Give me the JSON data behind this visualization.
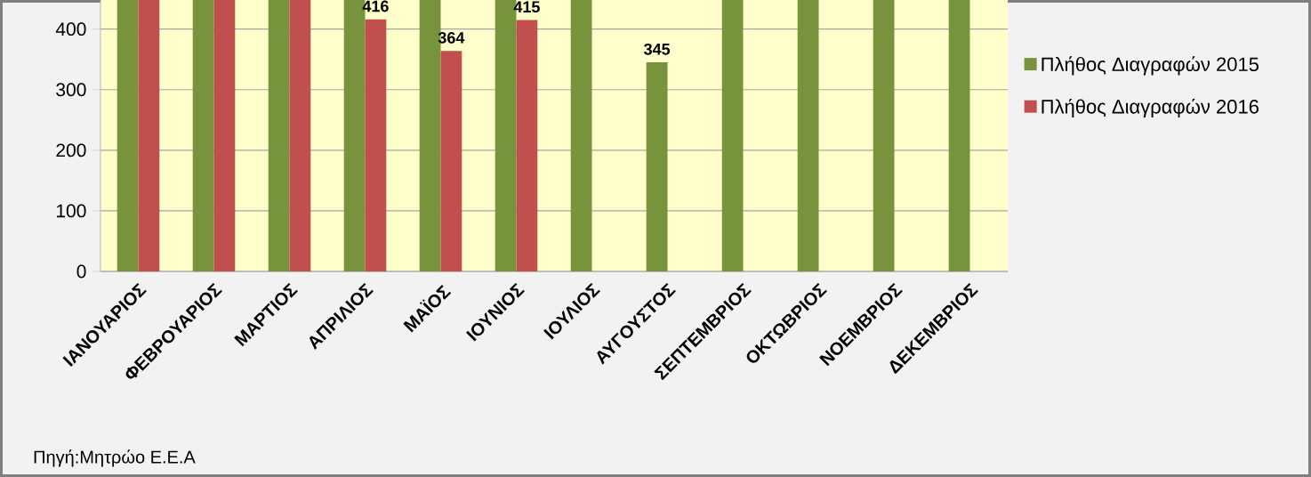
{
  "chart_data": {
    "type": "bar",
    "categories": [
      "ΙΑΝΟΥΑΡΙΟΣ",
      "ΦΕΒΡΟΥΑΡΙΟΣ",
      "ΜΑΡΤΙΟΣ",
      "ΑΠΡΙΛΙΟΣ",
      "ΜΑΪΟΣ",
      "ΙΟΥΝΙΟΣ",
      "ΙΟΥΛΙΟΣ",
      "ΑΥΓΟΥΣΤΟΣ",
      "ΣΕΠΤΕΜΒΡΙΟΣ",
      "ΟΚΤΩΒΡΙΟΣ",
      "ΝΟΕΜΒΡΙΟΣ",
      "ΔΕΚΕΜΒΡΙΟΣ"
    ],
    "series": [
      {
        "name": "Πλήθος Διαγραφών 2015",
        "color": "#77933c",
        "values": [
          448,
          448,
          448,
          448,
          448,
          448,
          448,
          345,
          448,
          448,
          448,
          448
        ],
        "value_labels": [
          null,
          null,
          null,
          null,
          null,
          null,
          null,
          "345",
          null,
          null,
          null,
          null
        ]
      },
      {
        "name": "Πλήθος Διαγραφών 2016",
        "color": "#c0504d",
        "values": [
          448,
          448,
          448,
          416,
          364,
          415,
          null,
          null,
          null,
          null,
          null,
          null
        ],
        "value_labels": [
          null,
          null,
          null,
          "416",
          "364",
          "415",
          null,
          null,
          null,
          null,
          null,
          null
        ]
      }
    ],
    "ylim": [
      0,
      448
    ],
    "yticks": [
      0,
      100,
      200,
      300,
      400
    ],
    "grid": "y",
    "legend": "right",
    "annotations": [
      "Πηγή:Μητρώο Ε.Ε.Α"
    ]
  }
}
